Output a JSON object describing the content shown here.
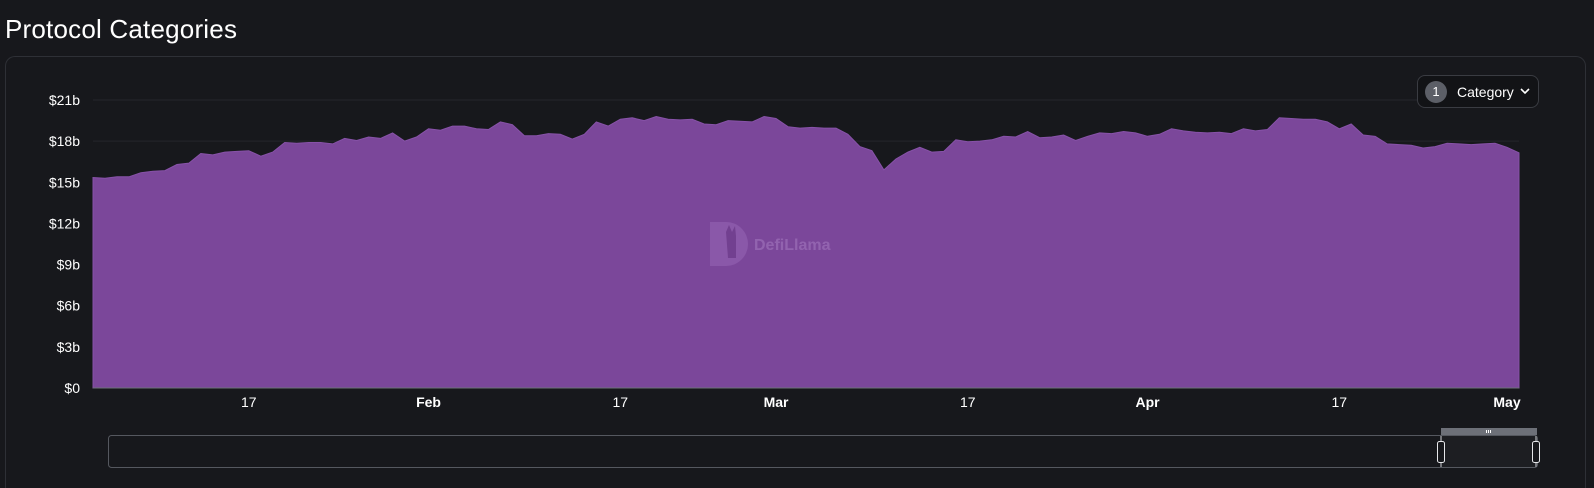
{
  "header": {
    "title": "Protocol Categories"
  },
  "category_selector": {
    "count": "1",
    "label": "Category"
  },
  "watermark": {
    "text": "DefiLlama"
  },
  "colors": {
    "area": "#7b479a",
    "background": "#17181c",
    "axis_text": "#ffffff"
  },
  "chart_data": {
    "type": "area",
    "title": "",
    "xlabel": "",
    "ylabel": "",
    "ylim": [
      0,
      21000000000
    ],
    "y_ticks": [
      "$0",
      "$3b",
      "$6b",
      "$9b",
      "$12b",
      "$15b",
      "$18b",
      "$21b"
    ],
    "x_ticks": [
      {
        "label": "17",
        "date": "2024-01-17",
        "major": false
      },
      {
        "label": "Feb",
        "date": "2024-02-01",
        "major": true
      },
      {
        "label": "17",
        "date": "2024-02-17",
        "major": false
      },
      {
        "label": "Mar",
        "date": "2024-03-01",
        "major": true
      },
      {
        "label": "17",
        "date": "2024-03-17",
        "major": false
      },
      {
        "label": "Apr",
        "date": "2024-04-01",
        "major": true
      },
      {
        "label": "17",
        "date": "2024-04-17",
        "major": false
      },
      {
        "label": "May",
        "date": "2024-05-01",
        "major": true
      }
    ],
    "x_range": [
      "2024-01-04",
      "2024-05-02"
    ],
    "grid": true,
    "series": [
      {
        "values": [
          [
            "2024-01-04",
            15.35
          ],
          [
            "2024-01-05",
            15.3
          ],
          [
            "2024-01-06",
            15.4
          ],
          [
            "2024-01-07",
            15.4
          ],
          [
            "2024-01-08",
            15.7
          ],
          [
            "2024-01-09",
            15.8
          ],
          [
            "2024-01-10",
            15.85
          ],
          [
            "2024-01-11",
            16.3
          ],
          [
            "2024-01-12",
            16.4
          ],
          [
            "2024-01-13",
            17.1
          ],
          [
            "2024-01-14",
            17.0
          ],
          [
            "2024-01-15",
            17.2
          ],
          [
            "2024-01-16",
            17.25
          ],
          [
            "2024-01-17",
            17.3
          ],
          [
            "2024-01-18",
            16.9
          ],
          [
            "2024-01-19",
            17.2
          ],
          [
            "2024-01-20",
            17.9
          ],
          [
            "2024-01-21",
            17.85
          ],
          [
            "2024-01-22",
            17.9
          ],
          [
            "2024-01-23",
            17.9
          ],
          [
            "2024-01-24",
            17.8
          ],
          [
            "2024-01-25",
            18.2
          ],
          [
            "2024-01-26",
            18.05
          ],
          [
            "2024-01-27",
            18.3
          ],
          [
            "2024-01-28",
            18.2
          ],
          [
            "2024-01-29",
            18.6
          ],
          [
            "2024-01-30",
            18.0
          ],
          [
            "2024-01-31",
            18.3
          ],
          [
            "2024-02-01",
            18.9
          ],
          [
            "2024-02-02",
            18.8
          ],
          [
            "2024-02-03",
            19.1
          ],
          [
            "2024-02-04",
            19.1
          ],
          [
            "2024-02-05",
            18.9
          ],
          [
            "2024-02-06",
            18.85
          ],
          [
            "2024-02-07",
            19.4
          ],
          [
            "2024-02-08",
            19.2
          ],
          [
            "2024-02-09",
            18.4
          ],
          [
            "2024-02-10",
            18.4
          ],
          [
            "2024-02-11",
            18.55
          ],
          [
            "2024-02-12",
            18.5
          ],
          [
            "2024-02-13",
            18.15
          ],
          [
            "2024-02-14",
            18.5
          ],
          [
            "2024-02-15",
            19.4
          ],
          [
            "2024-02-16",
            19.1
          ],
          [
            "2024-02-17",
            19.6
          ],
          [
            "2024-02-18",
            19.7
          ],
          [
            "2024-02-19",
            19.5
          ],
          [
            "2024-02-20",
            19.8
          ],
          [
            "2024-02-21",
            19.6
          ],
          [
            "2024-02-22",
            19.55
          ],
          [
            "2024-02-23",
            19.6
          ],
          [
            "2024-02-24",
            19.25
          ],
          [
            "2024-02-25",
            19.2
          ],
          [
            "2024-02-26",
            19.5
          ],
          [
            "2024-02-27",
            19.45
          ],
          [
            "2024-02-28",
            19.4
          ],
          [
            "2024-02-29",
            19.8
          ],
          [
            "2024-03-01",
            19.65
          ],
          [
            "2024-03-02",
            19.05
          ],
          [
            "2024-03-03",
            18.95
          ],
          [
            "2024-03-04",
            19.0
          ],
          [
            "2024-03-05",
            18.95
          ],
          [
            "2024-03-06",
            18.95
          ],
          [
            "2024-03-07",
            18.5
          ],
          [
            "2024-03-08",
            17.6
          ],
          [
            "2024-03-09",
            17.3
          ],
          [
            "2024-03-10",
            15.9
          ],
          [
            "2024-03-11",
            16.7
          ],
          [
            "2024-03-12",
            17.2
          ],
          [
            "2024-03-13",
            17.55
          ],
          [
            "2024-03-14",
            17.2
          ],
          [
            "2024-03-15",
            17.25
          ],
          [
            "2024-03-16",
            18.1
          ],
          [
            "2024-03-17",
            17.95
          ],
          [
            "2024-03-18",
            18.0
          ],
          [
            "2024-03-19",
            18.1
          ],
          [
            "2024-03-20",
            18.35
          ],
          [
            "2024-03-21",
            18.3
          ],
          [
            "2024-03-22",
            18.7
          ],
          [
            "2024-03-23",
            18.25
          ],
          [
            "2024-03-24",
            18.3
          ],
          [
            "2024-03-25",
            18.45
          ],
          [
            "2024-03-26",
            18.05
          ],
          [
            "2024-03-27",
            18.35
          ],
          [
            "2024-03-28",
            18.6
          ],
          [
            "2024-03-29",
            18.55
          ],
          [
            "2024-03-30",
            18.7
          ],
          [
            "2024-03-31",
            18.6
          ],
          [
            "2024-04-01",
            18.35
          ],
          [
            "2024-04-02",
            18.5
          ],
          [
            "2024-04-03",
            18.9
          ],
          [
            "2024-04-04",
            18.75
          ],
          [
            "2024-04-05",
            18.65
          ],
          [
            "2024-04-06",
            18.6
          ],
          [
            "2024-04-07",
            18.65
          ],
          [
            "2024-04-08",
            18.55
          ],
          [
            "2024-04-09",
            18.9
          ],
          [
            "2024-04-10",
            18.75
          ],
          [
            "2024-04-11",
            18.85
          ],
          [
            "2024-04-12",
            19.7
          ],
          [
            "2024-04-13",
            19.65
          ],
          [
            "2024-04-14",
            19.6
          ],
          [
            "2024-04-15",
            19.6
          ],
          [
            "2024-04-16",
            19.4
          ],
          [
            "2024-04-17",
            18.9
          ],
          [
            "2024-04-18",
            19.25
          ],
          [
            "2024-04-19",
            18.45
          ],
          [
            "2024-04-20",
            18.35
          ],
          [
            "2024-04-21",
            17.8
          ],
          [
            "2024-04-22",
            17.75
          ],
          [
            "2024-04-23",
            17.7
          ],
          [
            "2024-04-24",
            17.5
          ],
          [
            "2024-04-25",
            17.6
          ],
          [
            "2024-04-26",
            17.85
          ],
          [
            "2024-04-27",
            17.8
          ],
          [
            "2024-04-28",
            17.75
          ],
          [
            "2024-04-29",
            17.8
          ],
          [
            "2024-04-30",
            17.85
          ],
          [
            "2024-05-01",
            17.55
          ],
          [
            "2024-05-02",
            17.15
          ]
        ]
      }
    ]
  }
}
